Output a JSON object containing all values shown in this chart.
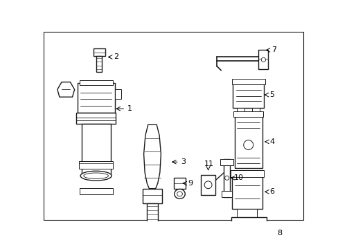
{
  "bg_color": "#ffffff",
  "line_color": "#1a1a1a",
  "fig_width": 4.89,
  "fig_height": 3.6,
  "dpi": 100,
  "border": true
}
